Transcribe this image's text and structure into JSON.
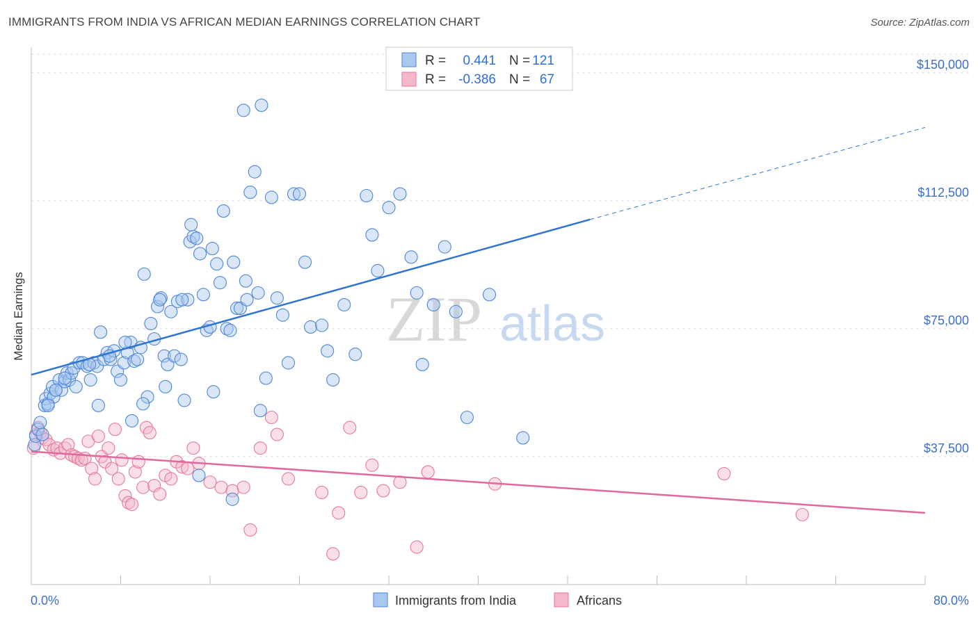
{
  "header": {
    "title": "IMMIGRANTS FROM INDIA VS AFRICAN MEDIAN EARNINGS CORRELATION CHART",
    "source": "Source: ZipAtlas.com"
  },
  "watermark": {
    "zip": "ZIP",
    "atlas": "atlas"
  },
  "colors": {
    "blue_fill": "#a9c8ef",
    "blue_stroke": "#4f86d6",
    "blue_line": "#2f74d0",
    "pink_fill": "#f5b8cb",
    "pink_stroke": "#e4799c",
    "pink_line": "#e0689a",
    "axis_text": "#3a6fc4",
    "grid": "#dddddd"
  },
  "chart_data": {
    "type": "scatter",
    "xlabel": "",
    "ylabel": "Median Earnings",
    "xlim": [
      0,
      80
    ],
    "ylim": [
      0,
      157500
    ],
    "x_tick_labels": [
      "0.0%",
      "80.0%"
    ],
    "y_ticks": [
      37500,
      75000,
      112500,
      150000
    ],
    "y_tick_labels": [
      "$37,500",
      "$75,000",
      "$112,500",
      "$150,000"
    ],
    "grid": "horizontal dashed",
    "legend": {
      "placement": "top-center",
      "entries": [
        {
          "r_label": "R =",
          "r_value": "0.441",
          "n_label": "N =",
          "n_value": "121"
        },
        {
          "r_label": "R =",
          "r_value": "-0.386",
          "n_label": "N =",
          "n_value": "67"
        }
      ]
    },
    "bottom_legend": [
      "Immigrants from India",
      "Africans"
    ],
    "series": [
      {
        "name": "Immigrants from India",
        "color": "#4f86d6",
        "trend": {
          "x_solid": [
            0,
            50
          ],
          "y_solid": [
            61500,
            107000
          ],
          "x_dashed": [
            50,
            80
          ],
          "y_dashed": [
            107000,
            134000
          ]
        },
        "points": [
          [
            0.3,
            41000
          ],
          [
            0.4,
            43500
          ],
          [
            0.6,
            45500
          ],
          [
            0.8,
            47500
          ],
          [
            1.0,
            44000
          ],
          [
            1.2,
            52500
          ],
          [
            1.3,
            54500
          ],
          [
            1.5,
            53000
          ],
          [
            1.7,
            56000
          ],
          [
            1.9,
            58000
          ],
          [
            2.0,
            55000
          ],
          [
            2.2,
            57000
          ],
          [
            2.5,
            60000
          ],
          [
            2.7,
            57000
          ],
          [
            3.0,
            59500
          ],
          [
            3.2,
            62000
          ],
          [
            3.4,
            60000
          ],
          [
            3.6,
            62000
          ],
          [
            3.8,
            63500
          ],
          [
            4.0,
            58000
          ],
          [
            4.3,
            65000
          ],
          [
            4.6,
            65000
          ],
          [
            5.0,
            64000
          ],
          [
            5.3,
            60000
          ],
          [
            5.6,
            65000
          ],
          [
            5.9,
            64000
          ],
          [
            6.2,
            74000
          ],
          [
            6.5,
            66000
          ],
          [
            6.8,
            68000
          ],
          [
            7.1,
            66000
          ],
          [
            7.4,
            68500
          ],
          [
            7.7,
            62500
          ],
          [
            8.0,
            60000
          ],
          [
            8.3,
            65000
          ],
          [
            8.6,
            68000
          ],
          [
            8.9,
            71000
          ],
          [
            9.2,
            65500
          ],
          [
            9.5,
            66000
          ],
          [
            9.8,
            69500
          ],
          [
            10.1,
            91000
          ],
          [
            10.4,
            55000
          ],
          [
            10.7,
            76500
          ],
          [
            11.0,
            72000
          ],
          [
            11.3,
            81500
          ],
          [
            11.6,
            84000
          ],
          [
            11.9,
            67000
          ],
          [
            12.2,
            64500
          ],
          [
            12.5,
            80000
          ],
          [
            12.8,
            67000
          ],
          [
            13.1,
            83000
          ],
          [
            13.4,
            66000
          ],
          [
            13.7,
            54000
          ],
          [
            14.0,
            83500
          ],
          [
            14.2,
            100500
          ],
          [
            14.5,
            102000
          ],
          [
            14.8,
            101500
          ],
          [
            15.1,
            97000
          ],
          [
            15.4,
            85000
          ],
          [
            15.7,
            74500
          ],
          [
            16.0,
            75500
          ],
          [
            16.3,
            56500
          ],
          [
            16.6,
            94000
          ],
          [
            16.9,
            88500
          ],
          [
            17.2,
            109500
          ],
          [
            17.5,
            75000
          ],
          [
            17.8,
            74500
          ],
          [
            18.1,
            94500
          ],
          [
            18.4,
            81000
          ],
          [
            18.7,
            81000
          ],
          [
            19.0,
            139000
          ],
          [
            19.3,
            83500
          ],
          [
            19.6,
            115000
          ],
          [
            20.0,
            121000
          ],
          [
            20.3,
            85500
          ],
          [
            20.6,
            140500
          ],
          [
            21.0,
            60500
          ],
          [
            21.5,
            113500
          ],
          [
            22.0,
            84000
          ],
          [
            22.5,
            79000
          ],
          [
            23.0,
            65000
          ],
          [
            23.5,
            114500
          ],
          [
            24.0,
            114500
          ],
          [
            24.5,
            94500
          ],
          [
            25.0,
            75500
          ],
          [
            26.5,
            68500
          ],
          [
            27.0,
            60000
          ],
          [
            28.0,
            82000
          ],
          [
            29.0,
            67500
          ],
          [
            30.0,
            114000
          ],
          [
            30.5,
            102500
          ],
          [
            31.0,
            92000
          ],
          [
            32.0,
            110500
          ],
          [
            33.0,
            114500
          ],
          [
            34.0,
            96000
          ],
          [
            34.5,
            85500
          ],
          [
            35.0,
            64500
          ],
          [
            36.0,
            82000
          ],
          [
            37.0,
            99000
          ],
          [
            38.0,
            80000
          ],
          [
            39.0,
            49000
          ],
          [
            41.0,
            85000
          ],
          [
            44.0,
            43000
          ],
          [
            20.5,
            51000
          ],
          [
            12.0,
            58000
          ],
          [
            9.0,
            48000
          ],
          [
            6.0,
            52500
          ],
          [
            15.0,
            32000
          ],
          [
            18.0,
            25000
          ],
          [
            26.0,
            76000
          ],
          [
            10.0,
            53000
          ],
          [
            13.5,
            83500
          ],
          [
            11.5,
            83500
          ],
          [
            7.0,
            67000
          ],
          [
            8.4,
            71000
          ],
          [
            5.2,
            64500
          ],
          [
            16.2,
            98500
          ],
          [
            19.2,
            89000
          ],
          [
            3.0,
            60500
          ],
          [
            2.2,
            57000
          ],
          [
            1.5,
            52500
          ],
          [
            14.3,
            105500
          ]
        ]
      },
      {
        "name": "Africans",
        "color": "#e4799c",
        "trend": {
          "x_solid": [
            0,
            80
          ],
          "y_solid": [
            39000,
            21000
          ]
        },
        "points": [
          [
            0.2,
            40000
          ],
          [
            0.4,
            44000
          ],
          [
            0.6,
            46000
          ],
          [
            0.8,
            44500
          ],
          [
            1.0,
            43000
          ],
          [
            1.3,
            42500
          ],
          [
            1.6,
            41000
          ],
          [
            2.0,
            39500
          ],
          [
            2.3,
            40000
          ],
          [
            2.6,
            38500
          ],
          [
            3.0,
            40000
          ],
          [
            3.3,
            41000
          ],
          [
            3.6,
            38000
          ],
          [
            3.9,
            37500
          ],
          [
            4.2,
            37000
          ],
          [
            4.5,
            36500
          ],
          [
            4.8,
            37000
          ],
          [
            5.1,
            42000
          ],
          [
            5.4,
            34000
          ],
          [
            5.7,
            31000
          ],
          [
            6.0,
            43500
          ],
          [
            6.3,
            37500
          ],
          [
            6.6,
            36000
          ],
          [
            6.9,
            40000
          ],
          [
            7.2,
            34000
          ],
          [
            7.5,
            45500
          ],
          [
            7.8,
            31000
          ],
          [
            8.1,
            36500
          ],
          [
            8.4,
            26000
          ],
          [
            8.7,
            24000
          ],
          [
            9.0,
            23500
          ],
          [
            9.3,
            33000
          ],
          [
            9.6,
            36000
          ],
          [
            10.0,
            28500
          ],
          [
            10.3,
            46000
          ],
          [
            10.6,
            44500
          ],
          [
            11.0,
            29000
          ],
          [
            11.5,
            26500
          ],
          [
            12.0,
            32000
          ],
          [
            12.5,
            31000
          ],
          [
            13.0,
            36000
          ],
          [
            13.5,
            34500
          ],
          [
            14.0,
            34000
          ],
          [
            14.5,
            40000
          ],
          [
            15.0,
            35500
          ],
          [
            16.0,
            30000
          ],
          [
            17.0,
            28500
          ],
          [
            18.0,
            27500
          ],
          [
            19.0,
            28500
          ],
          [
            19.6,
            16000
          ],
          [
            20.5,
            40000
          ],
          [
            21.5,
            49000
          ],
          [
            22.0,
            44000
          ],
          [
            23.0,
            31000
          ],
          [
            26.0,
            27000
          ],
          [
            27.0,
            9000
          ],
          [
            27.5,
            21000
          ],
          [
            28.5,
            46000
          ],
          [
            29.5,
            27000
          ],
          [
            30.5,
            35000
          ],
          [
            31.5,
            27500
          ],
          [
            33.0,
            30000
          ],
          [
            34.5,
            11000
          ],
          [
            35.5,
            33000
          ],
          [
            41.5,
            29500
          ],
          [
            62.0,
            32500
          ],
          [
            69.0,
            20500
          ]
        ]
      }
    ]
  }
}
